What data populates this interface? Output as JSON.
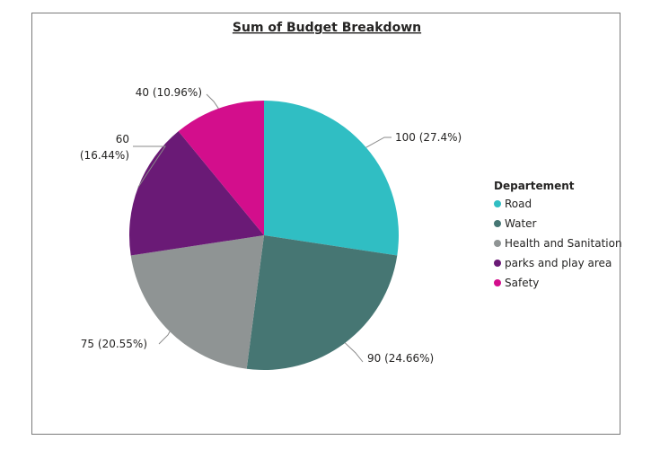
{
  "chart_data": {
    "type": "pie",
    "title": "Sum of Budget Breakdown",
    "legend": {
      "title": "Departement",
      "placement": "right"
    },
    "categories": [
      "Road",
      "Water",
      "Health and Sanitation",
      "parks and play area",
      "Safety"
    ],
    "values": [
      100,
      90,
      75,
      60,
      40
    ],
    "data_labels": [
      "100 (27.4%)",
      "90 (24.66%)",
      "75 (20.55%)",
      "60 (16.44%)",
      "40 (10.96%)"
    ],
    "colors": [
      "#30bec3",
      "#467673",
      "#8f9494",
      "#6a1a76",
      "#d30e8c"
    ]
  }
}
